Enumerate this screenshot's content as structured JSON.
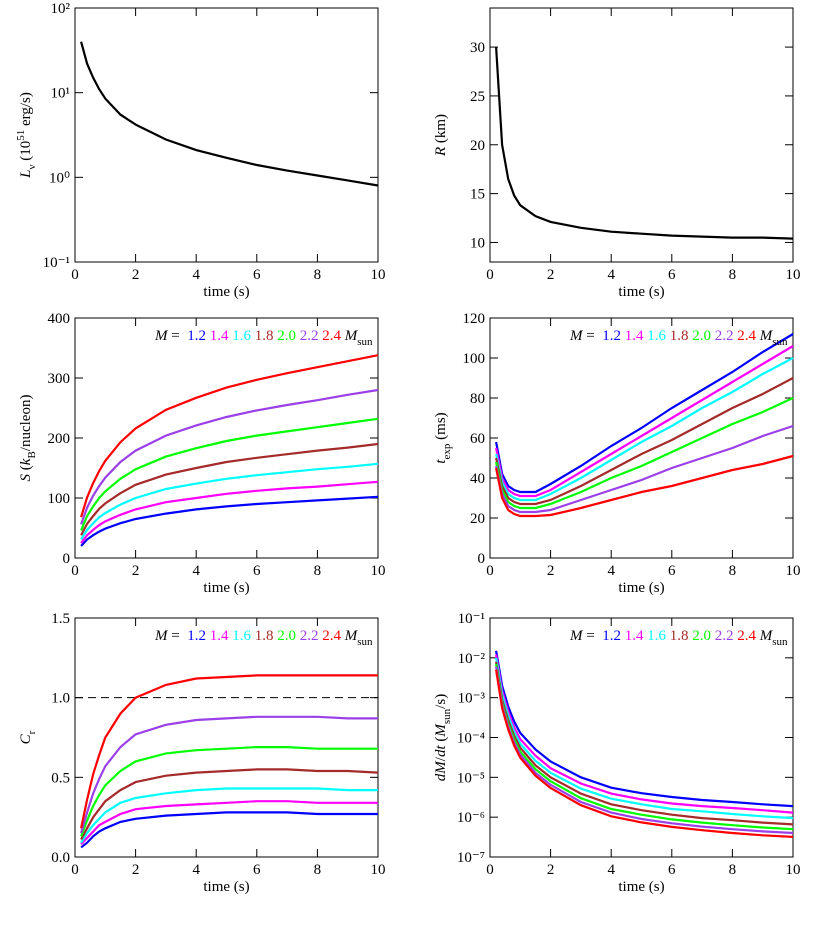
{
  "chart_data": [
    {
      "type": "line",
      "log_y": true,
      "x": [
        0.2,
        0.4,
        0.6,
        0.8,
        1,
        1.5,
        2,
        3,
        4,
        5,
        6,
        7,
        8,
        9,
        10
      ],
      "xlim": [
        0,
        10
      ],
      "xticks": [
        0,
        2,
        4,
        6,
        8,
        10
      ],
      "xlabel": "time (s)",
      "ylabel": [
        "L",
        "ν",
        " (10",
        "51",
        " erg/s)"
      ],
      "ylim": [
        0.1,
        100
      ],
      "yticks": [
        {
          "value": 0.1,
          "label": "10⁻¹"
        },
        {
          "value": 1,
          "label": "10⁰"
        },
        {
          "value": 10,
          "label": "10¹"
        },
        {
          "value": 100,
          "label": "10²"
        }
      ],
      "color": "#000000",
      "values": [
        40,
        22,
        15,
        11,
        8.5,
        5.5,
        4.2,
        2.8,
        2.1,
        1.7,
        1.4,
        1.2,
        1.05,
        0.92,
        0.8
      ]
    },
    {
      "type": "line",
      "x": [
        0.2,
        0.4,
        0.6,
        0.8,
        1,
        1.5,
        2,
        3,
        4,
        5,
        6,
        7,
        8,
        9,
        10
      ],
      "xlim": [
        0,
        10
      ],
      "xticks": [
        0,
        2,
        4,
        6,
        8,
        10
      ],
      "xlabel": "time (s)",
      "ylabel": [
        "R",
        " (km)"
      ],
      "ylim": [
        8,
        34
      ],
      "yticks": [
        10,
        15,
        20,
        25,
        30
      ],
      "color": "#000000",
      "values": [
        30,
        20,
        16.5,
        14.8,
        13.8,
        12.7,
        12.1,
        11.5,
        11.1,
        10.9,
        10.7,
        10.6,
        10.5,
        10.5,
        10.4
      ]
    },
    {
      "type": "line",
      "x": [
        0.2,
        0.4,
        0.6,
        0.8,
        1,
        1.5,
        2,
        3,
        4,
        5,
        6,
        7,
        8,
        9,
        10
      ],
      "xlim": [
        0,
        10
      ],
      "xticks": [
        0,
        2,
        4,
        6,
        8,
        10
      ],
      "xlabel": "time (s)",
      "ylabel": [
        "S",
        " (",
        "k",
        "B",
        "/nucleon)"
      ],
      "ylim": [
        0,
        400
      ],
      "yticks": [
        0,
        100,
        200,
        300,
        400
      ],
      "legend_prefix": [
        "M",
        " ="
      ],
      "legend_unit": [
        "M",
        "sun"
      ],
      "series": [
        {
          "name": "1.2",
          "color": "#0000ff",
          "values": [
            20,
            31,
            38,
            44,
            49,
            58,
            65,
            74,
            81,
            86,
            90,
            93,
            96,
            99,
            102
          ]
        },
        {
          "name": "1.4",
          "color": "#ff00ff",
          "values": [
            25,
            38,
            47,
            55,
            61,
            72,
            81,
            93,
            100,
            107,
            112,
            116,
            119,
            123,
            127
          ]
        },
        {
          "name": "1.6",
          "color": "#00ffff",
          "values": [
            31,
            47,
            58,
            68,
            75,
            89,
            100,
            115,
            124,
            132,
            138,
            143,
            148,
            152,
            157
          ]
        },
        {
          "name": "1.8",
          "color": "#a52a2a",
          "values": [
            38,
            57,
            70,
            82,
            91,
            108,
            122,
            139,
            150,
            160,
            167,
            173,
            179,
            184,
            190
          ]
        },
        {
          "name": "2.0",
          "color": "#00ff00",
          "values": [
            46,
            70,
            86,
            100,
            111,
            132,
            148,
            169,
            183,
            195,
            204,
            211,
            218,
            225,
            232
          ]
        },
        {
          "name": "2.2",
          "color": "#9b40e8",
          "values": [
            56,
            84,
            104,
            120,
            134,
            160,
            179,
            204,
            221,
            235,
            246,
            255,
            263,
            272,
            280
          ]
        },
        {
          "name": "2.4",
          "color": "#ff0000",
          "values": [
            68,
            101,
            125,
            145,
            162,
            193,
            216,
            247,
            267,
            284,
            297,
            308,
            318,
            328,
            338
          ]
        }
      ]
    },
    {
      "type": "line",
      "x": [
        0.2,
        0.4,
        0.6,
        0.8,
        1,
        1.5,
        2,
        3,
        4,
        5,
        6,
        7,
        8,
        9,
        10
      ],
      "xlim": [
        0,
        10
      ],
      "xticks": [
        0,
        2,
        4,
        6,
        8,
        10
      ],
      "xlabel": "time (s)",
      "ylabel": [
        "t",
        "exp",
        " (ms)"
      ],
      "ylim": [
        0,
        120
      ],
      "yticks": [
        0,
        20,
        40,
        60,
        80,
        100,
        120
      ],
      "legend_prefix": [
        "M",
        " ="
      ],
      "legend_unit": [
        "M",
        "sun"
      ],
      "series": [
        {
          "name": "1.2",
          "color": "#0000ff",
          "values": [
            58,
            42,
            36,
            34,
            33,
            33,
            37,
            46,
            56,
            65,
            75,
            84,
            93,
            103,
            112
          ]
        },
        {
          "name": "1.4",
          "color": "#ff00ff",
          "values": [
            55,
            40,
            34,
            32,
            31,
            31,
            34,
            43,
            52,
            61,
            70,
            79,
            88,
            97,
            106
          ]
        },
        {
          "name": "1.6",
          "color": "#00ffff",
          "values": [
            52,
            38,
            32,
            30,
            29,
            29,
            32,
            40,
            49,
            58,
            66,
            75,
            83,
            92,
            100
          ]
        },
        {
          "name": "1.8",
          "color": "#a52a2a",
          "values": [
            50,
            36,
            30,
            28,
            27,
            27,
            29,
            36,
            44,
            52,
            59,
            67,
            75,
            82,
            90
          ]
        },
        {
          "name": "2.0",
          "color": "#00ff00",
          "values": [
            48,
            34,
            28,
            26,
            25,
            25,
            27,
            33,
            40,
            46,
            53,
            60,
            67,
            73,
            80
          ]
        },
        {
          "name": "2.2",
          "color": "#9b40e8",
          "values": [
            46,
            32,
            26,
            24,
            23,
            23,
            24,
            29,
            34,
            39,
            45,
            50,
            55,
            61,
            66
          ]
        },
        {
          "name": "2.4",
          "color": "#ff0000",
          "values": [
            45,
            30,
            24,
            22,
            21,
            21,
            21.5,
            25,
            29,
            33,
            36,
            40,
            44,
            47,
            51
          ]
        }
      ]
    },
    {
      "type": "line",
      "x": [
        0.2,
        0.4,
        0.6,
        0.8,
        1,
        1.5,
        2,
        3,
        4,
        5,
        6,
        7,
        8,
        9,
        10
      ],
      "xlim": [
        0,
        10
      ],
      "xticks": [
        0,
        2,
        4,
        6,
        8,
        10
      ],
      "xlabel": "time (s)",
      "ylabel": [
        "C",
        "r"
      ],
      "ylim": [
        0,
        1.5
      ],
      "yticks": [
        {
          "value": 0,
          "label": "0.0"
        },
        0.5,
        {
          "value": 1,
          "label": "1.0"
        },
        1.5
      ],
      "hline": 1,
      "legend_prefix": [
        "M",
        " ="
      ],
      "legend_unit": [
        "M",
        "sun"
      ],
      "series": [
        {
          "name": "1.2",
          "color": "#0000ff",
          "values": [
            0.06,
            0.09,
            0.13,
            0.16,
            0.18,
            0.22,
            0.24,
            0.26,
            0.27,
            0.28,
            0.28,
            0.28,
            0.27,
            0.27,
            0.27
          ]
        },
        {
          "name": "1.4",
          "color": "#ff00ff",
          "values": [
            0.08,
            0.12,
            0.16,
            0.2,
            0.22,
            0.27,
            0.3,
            0.32,
            0.33,
            0.34,
            0.35,
            0.35,
            0.34,
            0.34,
            0.34
          ]
        },
        {
          "name": "1.6",
          "color": "#00ffff",
          "values": [
            0.09,
            0.15,
            0.2,
            0.24,
            0.28,
            0.34,
            0.37,
            0.4,
            0.42,
            0.43,
            0.43,
            0.43,
            0.43,
            0.42,
            0.42
          ]
        },
        {
          "name": "1.8",
          "color": "#a52a2a",
          "values": [
            0.11,
            0.18,
            0.25,
            0.3,
            0.35,
            0.42,
            0.47,
            0.51,
            0.53,
            0.54,
            0.55,
            0.55,
            0.54,
            0.54,
            0.53
          ]
        },
        {
          "name": "2.0",
          "color": "#00ff00",
          "values": [
            0.13,
            0.23,
            0.32,
            0.39,
            0.45,
            0.54,
            0.6,
            0.65,
            0.67,
            0.68,
            0.69,
            0.69,
            0.68,
            0.68,
            0.68
          ]
        },
        {
          "name": "2.2",
          "color": "#9b40e8",
          "values": [
            0.15,
            0.28,
            0.4,
            0.49,
            0.57,
            0.69,
            0.77,
            0.83,
            0.86,
            0.87,
            0.88,
            0.88,
            0.88,
            0.87,
            0.87
          ]
        },
        {
          "name": "2.4",
          "color": "#ff0000",
          "values": [
            0.18,
            0.36,
            0.52,
            0.64,
            0.75,
            0.9,
            1.0,
            1.08,
            1.12,
            1.13,
            1.14,
            1.14,
            1.14,
            1.14,
            1.14
          ]
        }
      ]
    },
    {
      "type": "line",
      "log_y": true,
      "x": [
        0.2,
        0.4,
        0.6,
        0.8,
        1,
        1.5,
        2,
        3,
        4,
        5,
        6,
        7,
        8,
        9,
        10
      ],
      "xlim": [
        0,
        10
      ],
      "xticks": [
        0,
        2,
        4,
        6,
        8,
        10
      ],
      "xlabel": "time (s)",
      "ylabel": [
        "dM",
        "/",
        "dt",
        " (",
        "M",
        "sun",
        "/s)"
      ],
      "ylim": [
        1e-07,
        0.1
      ],
      "yticks": [
        {
          "value": 1e-07,
          "label": "10⁻⁷"
        },
        {
          "value": 1e-06,
          "label": "10⁻⁶"
        },
        {
          "value": 1e-05,
          "label": "10⁻⁵"
        },
        {
          "value": 0.0001,
          "label": "10⁻⁴"
        },
        {
          "value": 0.001,
          "label": "10⁻³"
        },
        {
          "value": 0.01,
          "label": "10⁻²"
        },
        {
          "value": 0.1,
          "label": "10⁻¹"
        }
      ],
      "legend_prefix": [
        "M",
        " ="
      ],
      "legend_unit": [
        "M",
        "sun"
      ],
      "series": [
        {
          "name": "1.2",
          "color": "#0000ff",
          "values": [
            0.015,
            0.002,
            0.0006,
            0.00025,
            0.00013,
            5e-05,
            2.5e-05,
            1e-05,
            5.5e-06,
            4e-06,
            3.2e-06,
            2.7e-06,
            2.4e-06,
            2.1e-06,
            1.9e-06
          ]
        },
        {
          "name": "1.4",
          "color": "#ff00ff",
          "values": [
            0.012,
            0.0015,
            0.00045,
            0.00018,
            9e-05,
            3.5e-05,
            1.7e-05,
            7e-06,
            3.9e-06,
            2.8e-06,
            2.2e-06,
            1.9e-06,
            1.7e-06,
            1.5e-06,
            1.3e-06
          ]
        },
        {
          "name": "1.6",
          "color": "#00ffff",
          "values": [
            0.01,
            0.0012,
            0.00035,
            0.00014,
            7e-05,
            2.6e-05,
            1.3e-05,
            5.2e-06,
            2.9e-06,
            2.1e-06,
            1.6e-06,
            1.4e-06,
            1.2e-06,
            1.05e-06,
            9.5e-07
          ]
        },
        {
          "name": "1.8",
          "color": "#a52a2a",
          "values": [
            0.008,
            0.0009,
            0.00027,
            0.00011,
            5.5e-05,
            2e-05,
            1e-05,
            3.9e-06,
            2.1e-06,
            1.5e-06,
            1.15e-06,
            9.5e-07,
            8.4e-07,
            7.3e-07,
            6.6e-07
          ]
        },
        {
          "name": "2.0",
          "color": "#00ff00",
          "values": [
            0.007,
            0.00075,
            0.00022,
            9e-05,
            4.4e-05,
            1.6e-05,
            8e-06,
            3e-06,
            1.6e-06,
            1.15e-06,
            8.8e-07,
            7.3e-07,
            6.3e-07,
            5.5e-07,
            5e-07
          ]
        },
        {
          "name": "2.2",
          "color": "#9b40e8",
          "values": [
            0.006,
            0.00065,
            0.00019,
            7.5e-05,
            3.7e-05,
            1.3e-05,
            6.5e-06,
            2.4e-06,
            1.3e-06,
            9e-07,
            7e-07,
            5.8e-07,
            5e-07,
            4.4e-07,
            4e-07
          ]
        },
        {
          "name": "2.4",
          "color": "#ff0000",
          "values": [
            0.005,
            0.00055,
            0.00016,
            6.3e-05,
            3.1e-05,
            1.1e-05,
            5.4e-06,
            2e-06,
            1.05e-06,
            7.4e-07,
            5.7e-07,
            4.7e-07,
            4e-07,
            3.5e-07,
            3.2e-07
          ]
        }
      ]
    }
  ]
}
